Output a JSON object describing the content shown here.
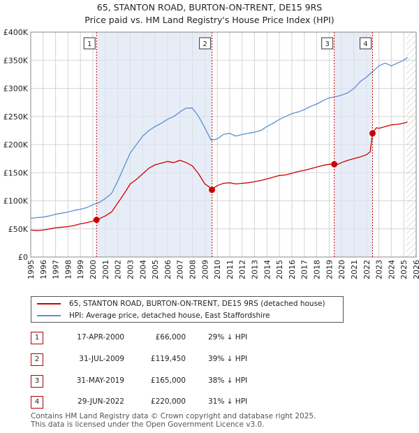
{
  "title_line1": "65, STANTON ROAD, BURTON-ON-TRENT, DE15 9RS",
  "title_line2": "Price paid vs. HM Land Registry's House Price Index (HPI)",
  "chart_data": {
    "type": "line",
    "xlim": [
      1995,
      2026
    ],
    "ylim": [
      0,
      400000
    ],
    "y_ticks": [
      0,
      50000,
      100000,
      150000,
      200000,
      250000,
      300000,
      350000,
      400000
    ],
    "y_tick_labels": [
      "£0",
      "£50K",
      "£100K",
      "£150K",
      "£200K",
      "£250K",
      "£300K",
      "£350K",
      "£400K"
    ],
    "x_tick_labels": [
      "1995",
      "1996",
      "1997",
      "1998",
      "1999",
      "2000",
      "2001",
      "2002",
      "2003",
      "2004",
      "2005",
      "2006",
      "2007",
      "2008",
      "2009",
      "2010",
      "2011",
      "2012",
      "2013",
      "2014",
      "2015",
      "2016",
      "2017",
      "2018",
      "2019",
      "2020",
      "2021",
      "2022",
      "2023",
      "2024",
      "2025",
      "2026"
    ],
    "grid": true,
    "hatch_after_year": 2025.2,
    "series": [
      {
        "name": "65, STANTON ROAD, BURTON-ON-TRENT, DE15 9RS (detached house)",
        "color": "#cc0000",
        "x": [
          1995.0,
          1995.5,
          1996.0,
          1996.5,
          1997.0,
          1997.5,
          1998.0,
          1998.5,
          1999.0,
          1999.5,
          2000.0,
          2000.29,
          2000.3,
          2000.5,
          2001.0,
          2001.5,
          2002.0,
          2002.5,
          2003.0,
          2003.5,
          2004.0,
          2004.5,
          2005.0,
          2005.5,
          2006.0,
          2006.5,
          2007.0,
          2007.5,
          2008.0,
          2008.5,
          2009.0,
          2009.4,
          2009.58,
          2009.6,
          2010.0,
          2010.5,
          2011.0,
          2011.5,
          2012.0,
          2012.5,
          2013.0,
          2013.5,
          2014.0,
          2014.5,
          2015.0,
          2015.5,
          2016.0,
          2016.5,
          2017.0,
          2017.5,
          2018.0,
          2018.5,
          2019.0,
          2019.41,
          2019.45,
          2019.6,
          2020.0,
          2020.5,
          2021.0,
          2021.5,
          2022.0,
          2022.3,
          2022.49,
          2022.5,
          2022.8,
          2023.0,
          2023.5,
          2024.0,
          2024.5,
          2025.0,
          2025.3
        ],
        "values": [
          48000,
          47000,
          48000,
          50000,
          52000,
          53000,
          54000,
          56000,
          59000,
          61000,
          64000,
          66000,
          66000,
          68000,
          73000,
          80000,
          96000,
          112000,
          130000,
          138000,
          148000,
          158000,
          164000,
          167000,
          170000,
          168000,
          172000,
          168000,
          162000,
          148000,
          130000,
          124000,
          119450,
          121000,
          127000,
          131000,
          132000,
          130000,
          131000,
          132000,
          134000,
          136000,
          139000,
          142000,
          145000,
          146000,
          149000,
          152000,
          154000,
          157000,
          160000,
          163000,
          165000,
          165000,
          165000,
          164000,
          168000,
          172000,
          175000,
          178000,
          182000,
          187000,
          220000,
          221000,
          230000,
          229000,
          232000,
          235000,
          236000,
          238000,
          240000
        ]
      },
      {
        "name": "HPI: Average price, detached house, East Staffordshire",
        "color": "#5b8fcf",
        "x": [
          1995.0,
          1995.5,
          1996.0,
          1996.5,
          1997.0,
          1997.5,
          1998.0,
          1998.5,
          1999.0,
          1999.5,
          2000.0,
          2000.5,
          2001.0,
          2001.5,
          2002.0,
          2002.5,
          2003.0,
          2003.5,
          2004.0,
          2004.5,
          2005.0,
          2005.5,
          2006.0,
          2006.5,
          2007.0,
          2007.5,
          2008.0,
          2008.5,
          2009.0,
          2009.5,
          2010.0,
          2010.5,
          2011.0,
          2011.5,
          2012.0,
          2012.5,
          2013.0,
          2013.5,
          2014.0,
          2014.5,
          2015.0,
          2015.5,
          2016.0,
          2016.5,
          2017.0,
          2017.5,
          2018.0,
          2018.5,
          2019.0,
          2019.5,
          2020.0,
          2020.5,
          2021.0,
          2021.5,
          2022.0,
          2022.5,
          2023.0,
          2023.5,
          2024.0,
          2024.5,
          2025.0,
          2025.3
        ],
        "values": [
          69000,
          70000,
          71000,
          73000,
          76000,
          78000,
          80000,
          83000,
          85000,
          88000,
          93000,
          97000,
          104000,
          113000,
          135000,
          160000,
          185000,
          200000,
          215000,
          225000,
          232000,
          238000,
          245000,
          250000,
          258000,
          265000,
          265000,
          250000,
          230000,
          208000,
          210000,
          218000,
          220000,
          215000,
          218000,
          220000,
          222000,
          225000,
          232000,
          238000,
          245000,
          250000,
          255000,
          258000,
          262000,
          268000,
          272000,
          278000,
          283000,
          285000,
          288000,
          292000,
          300000,
          312000,
          320000,
          330000,
          340000,
          345000,
          340000,
          345000,
          350000,
          355000
        ]
      }
    ],
    "sales": [
      {
        "label": "1",
        "x": 2000.29,
        "value": 66000
      },
      {
        "label": "2",
        "x": 2009.58,
        "value": 119450
      },
      {
        "label": "3",
        "x": 2019.41,
        "value": 165000
      },
      {
        "label": "4",
        "x": 2022.49,
        "value": 220000
      }
    ]
  },
  "legend": [
    {
      "label": "65, STANTON ROAD, BURTON-ON-TRENT, DE15 9RS (detached house)",
      "color": "#cc0000"
    },
    {
      "label": "HPI: Average price, detached house, East Staffordshire",
      "color": "#5b8fcf"
    }
  ],
  "transactions": [
    {
      "num": "1",
      "date": "17-APR-2000",
      "price": "£66,000",
      "hpi": "29% ↓ HPI"
    },
    {
      "num": "2",
      "date": "31-JUL-2009",
      "price": "£119,450",
      "hpi": "39% ↓ HPI"
    },
    {
      "num": "3",
      "date": "31-MAY-2019",
      "price": "£165,000",
      "hpi": "38% ↓ HPI"
    },
    {
      "num": "4",
      "date": "29-JUN-2022",
      "price": "£220,000",
      "hpi": "31% ↓ HPI"
    }
  ],
  "footer_line1": "Contains HM Land Registry data © Crown copyright and database right 2025.",
  "footer_line2": "This data is licensed under the Open Government Licence v3.0."
}
